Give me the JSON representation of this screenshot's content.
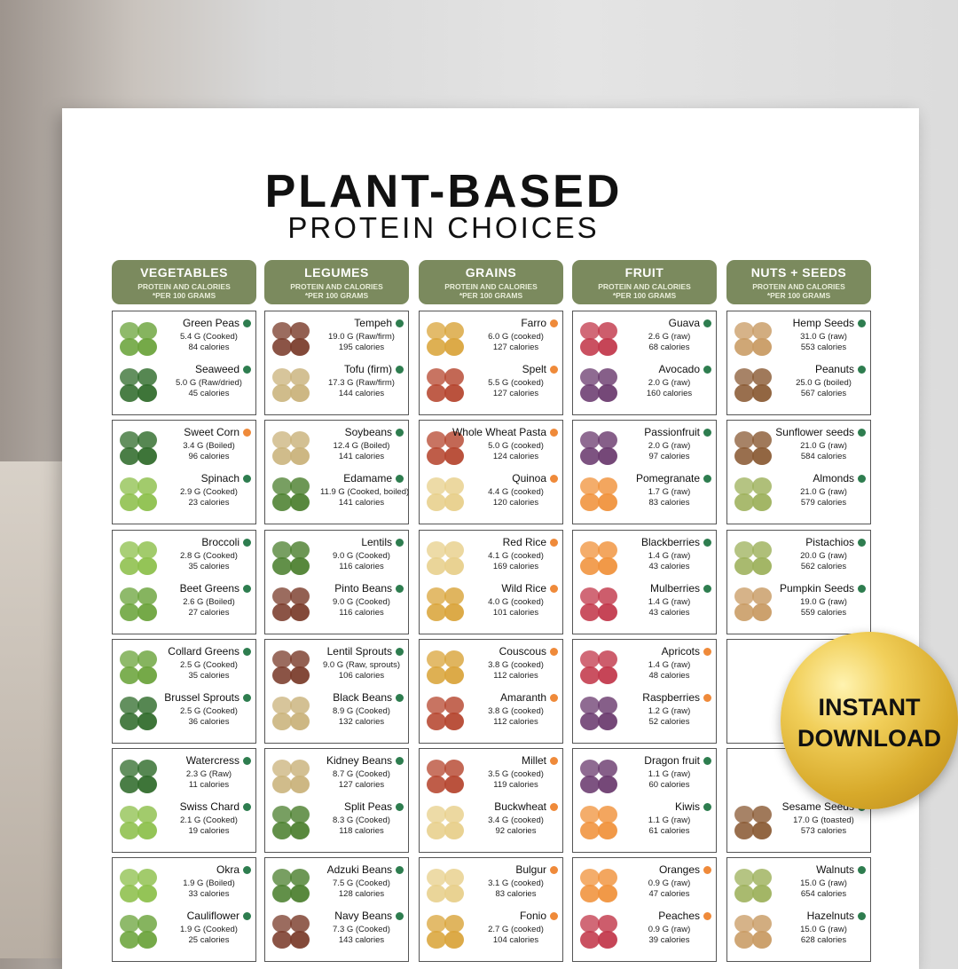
{
  "header": {
    "title": "PLANT-BASED",
    "subtitle": "PROTEIN CHOICES"
  },
  "badge": {
    "line1": "INSTANT",
    "line2": "DOWNLOAD"
  },
  "columns": [
    {
      "name": "VEGETABLES",
      "sub1": "PROTEIN AND CALORIES",
      "sub2": "*PER 100 GRAMS",
      "cells": [
        [
          {
            "name": "Green Peas",
            "protein": "5.4 G (Cooked)",
            "calories": "84 calories",
            "dot": "#2e7d4f"
          },
          {
            "name": "Seaweed",
            "protein": "5.0 G (Raw/dried)",
            "calories": "45 calories",
            "dot": "#2e7d4f"
          }
        ],
        [
          {
            "name": "Sweet Corn",
            "protein": "3.4 G (Boiled)",
            "calories": "96 calories",
            "dot": "#ef8a3a"
          },
          {
            "name": "Spinach",
            "protein": "2.9 G (Cooked)",
            "calories": "23 calories",
            "dot": "#2e7d4f"
          }
        ],
        [
          {
            "name": "Broccoli",
            "protein": "2.8 G (Cooked)",
            "calories": "35 calories",
            "dot": "#2e7d4f"
          },
          {
            "name": "Beet Greens",
            "protein": "2.6 G (Boiled)",
            "calories": "27 calories",
            "dot": "#2e7d4f"
          }
        ],
        [
          {
            "name": "Collard Greens",
            "protein": "2.5 G (Cooked)",
            "calories": "35 calories",
            "dot": "#2e7d4f"
          },
          {
            "name": "Brussel Sprouts",
            "protein": "2.5 G (Cooked)",
            "calories": "36 calories",
            "dot": "#2e7d4f"
          }
        ],
        [
          {
            "name": "Watercress",
            "protein": "2.3 G (Raw)",
            "calories": "11 calories",
            "dot": "#2e7d4f"
          },
          {
            "name": "Swiss Chard",
            "protein": "2.1 G (Cooked)",
            "calories": "19 calories",
            "dot": "#2e7d4f"
          }
        ],
        [
          {
            "name": "Okra",
            "protein": "1.9 G (Boiled)",
            "calories": "33 calories",
            "dot": "#2e7d4f"
          },
          {
            "name": "Cauliflower",
            "protein": "1.9 G (Cooked)",
            "calories": "25 calories",
            "dot": "#2e7d4f"
          }
        ]
      ]
    },
    {
      "name": "LEGUMES",
      "sub1": "PROTEIN AND CALORIES",
      "sub2": "*PER 100 GRAMS",
      "cells": [
        [
          {
            "name": "Tempeh",
            "protein": "19.0 G (Raw/firm)",
            "calories": "195 calories",
            "dot": "#2e7d4f"
          },
          {
            "name": "Tofu (firm)",
            "protein": "17.3 G (Raw/firm)",
            "calories": "144 calories",
            "dot": "#2e7d4f"
          }
        ],
        [
          {
            "name": "Soybeans",
            "protein": "12.4 G (Boiled)",
            "calories": "141 calories",
            "dot": "#2e7d4f"
          },
          {
            "name": "Edamame",
            "protein": "11.9 G (Cooked, boiled)",
            "calories": "141 calories",
            "dot": "#2e7d4f"
          }
        ],
        [
          {
            "name": "Lentils",
            "protein": "9.0 G (Cooked)",
            "calories": "116 calories",
            "dot": "#2e7d4f"
          },
          {
            "name": "Pinto Beans",
            "protein": "9.0 G (Cooked)",
            "calories": "116 calories",
            "dot": "#2e7d4f"
          }
        ],
        [
          {
            "name": "Lentil Sprouts",
            "protein": "9.0 G (Raw, sprouts)",
            "calories": "106 calories",
            "dot": "#2e7d4f"
          },
          {
            "name": "Black Beans",
            "protein": "8.9 G (Cooked)",
            "calories": "132 calories",
            "dot": "#2e7d4f"
          }
        ],
        [
          {
            "name": "Kidney Beans",
            "protein": "8.7 G (Cooked)",
            "calories": "127 calories",
            "dot": "#2e7d4f"
          },
          {
            "name": "Split Peas",
            "protein": "8.3 G (Cooked)",
            "calories": "118 calories",
            "dot": "#2e7d4f"
          }
        ],
        [
          {
            "name": "Adzuki Beans",
            "protein": "7.5 G (Cooked)",
            "calories": "128 calories",
            "dot": "#2e7d4f"
          },
          {
            "name": "Navy Beans",
            "protein": "7.3 G (Cooked)",
            "calories": "143 calories",
            "dot": "#2e7d4f"
          }
        ]
      ]
    },
    {
      "name": "GRAINS",
      "sub1": "PROTEIN AND CALORIES",
      "sub2": "*PER 100 GRAMS",
      "cells": [
        [
          {
            "name": "Farro",
            "protein": "6.0 G (cooked)",
            "calories": "127 calories",
            "dot": "#ef8a3a"
          },
          {
            "name": "Spelt",
            "protein": "5.5 G (cooked)",
            "calories": "127 calories",
            "dot": "#ef8a3a"
          }
        ],
        [
          {
            "name": "Whole Wheat Pasta",
            "protein": "5.0 G (cooked)",
            "calories": "124 calories",
            "dot": "#ef8a3a"
          },
          {
            "name": "Quinoa",
            "protein": "4.4 G (cooked)",
            "calories": "120 calories",
            "dot": "#ef8a3a"
          }
        ],
        [
          {
            "name": "Red Rice",
            "protein": "4.1 G (cooked)",
            "calories": "169 calories",
            "dot": "#ef8a3a"
          },
          {
            "name": "Wild Rice",
            "protein": "4.0 G (cooked)",
            "calories": "101 calories",
            "dot": "#ef8a3a"
          }
        ],
        [
          {
            "name": "Couscous",
            "protein": "3.8 G (cooked)",
            "calories": "112 calories",
            "dot": "#ef8a3a"
          },
          {
            "name": "Amaranth",
            "protein": "3.8 G (cooked)",
            "calories": "112 calories",
            "dot": "#ef8a3a"
          }
        ],
        [
          {
            "name": "Millet",
            "protein": "3.5 G (cooked)",
            "calories": "119 calories",
            "dot": "#ef8a3a"
          },
          {
            "name": "Buckwheat",
            "protein": "3.4 G (cooked)",
            "calories": "92 calories",
            "dot": "#ef8a3a"
          }
        ],
        [
          {
            "name": "Bulgur",
            "protein": "3.1 G (cooked)",
            "calories": "83 calories",
            "dot": "#ef8a3a"
          },
          {
            "name": "Fonio",
            "protein": "2.7 G (cooked)",
            "calories": "104 calories",
            "dot": "#ef8a3a"
          }
        ]
      ]
    },
    {
      "name": "FRUIT",
      "sub1": "PROTEIN AND CALORIES",
      "sub2": "*PER 100 GRAMS",
      "cells": [
        [
          {
            "name": "Guava",
            "protein": "2.6 G (raw)",
            "calories": "68 calories",
            "dot": "#2e7d4f"
          },
          {
            "name": "Avocado",
            "protein": "2.0 G (raw)",
            "calories": "160 calories",
            "dot": "#2e7d4f"
          }
        ],
        [
          {
            "name": "Passionfruit",
            "protein": "2.0 G (raw)",
            "calories": "97 calories",
            "dot": "#2e7d4f"
          },
          {
            "name": "Pomegranate",
            "protein": "1.7 G (raw)",
            "calories": "83 calories",
            "dot": "#2e7d4f"
          }
        ],
        [
          {
            "name": "Blackberries",
            "protein": "1.4 G (raw)",
            "calories": "43 calories",
            "dot": "#2e7d4f"
          },
          {
            "name": "Mulberries",
            "protein": "1.4 G (raw)",
            "calories": "43 calories",
            "dot": "#2e7d4f"
          }
        ],
        [
          {
            "name": "Apricots",
            "protein": "1.4 G (raw)",
            "calories": "48 calories",
            "dot": "#ef8a3a"
          },
          {
            "name": "Raspberries",
            "protein": "1.2 G (raw)",
            "calories": "52 calories",
            "dot": "#ef8a3a"
          }
        ],
        [
          {
            "name": "Dragon fruit",
            "protein": "1.1 G (raw)",
            "calories": "60 calories",
            "dot": "#2e7d4f"
          },
          {
            "name": "Kiwis",
            "protein": "1.1 G (raw)",
            "calories": "61 calories",
            "dot": "#2e7d4f"
          }
        ],
        [
          {
            "name": "Oranges",
            "protein": "0.9 G (raw)",
            "calories": "47 calories",
            "dot": "#ef8a3a"
          },
          {
            "name": "Peaches",
            "protein": "0.9 G (raw)",
            "calories": "39 calories",
            "dot": "#ef8a3a"
          }
        ]
      ]
    },
    {
      "name": "NUTS + SEEDS",
      "sub1": "PROTEIN AND CALORIES",
      "sub2": "*PER 100 GRAMS",
      "cells": [
        [
          {
            "name": "Hemp Seeds",
            "protein": "31.0 G (raw)",
            "calories": "553 calories",
            "dot": "#2e7d4f"
          },
          {
            "name": "Peanuts",
            "protein": "25.0 G (boiled)",
            "calories": "567 calories",
            "dot": "#2e7d4f"
          }
        ],
        [
          {
            "name": "Sunflower seeds",
            "protein": "21.0 G (raw)",
            "calories": "584 calories",
            "dot": "#2e7d4f"
          },
          {
            "name": "Almonds",
            "protein": "21.0 G (raw)",
            "calories": "579 calories",
            "dot": "#2e7d4f"
          }
        ],
        [
          {
            "name": "Pistachios",
            "protein": "20.0 G (raw)",
            "calories": "562 calories",
            "dot": "#2e7d4f"
          },
          {
            "name": "Pumpkin Seeds",
            "protein": "19.0 G (raw)",
            "calories": "559 calories",
            "dot": "#2e7d4f"
          }
        ],
        [],
        [
          {
            "name": "Sesame Seeds",
            "protein": "17.0 G (toasted)",
            "calories": "573 calories",
            "dot": "#2e7d4f"
          }
        ],
        [
          {
            "name": "Walnuts",
            "protein": "15.0 G (raw)",
            "calories": "654 calories",
            "dot": "#2e7d4f"
          },
          {
            "name": "Hazelnuts",
            "protein": "15.0 G (raw)",
            "calories": "628 calories",
            "dot": "#2e7d4f"
          }
        ]
      ]
    }
  ]
}
